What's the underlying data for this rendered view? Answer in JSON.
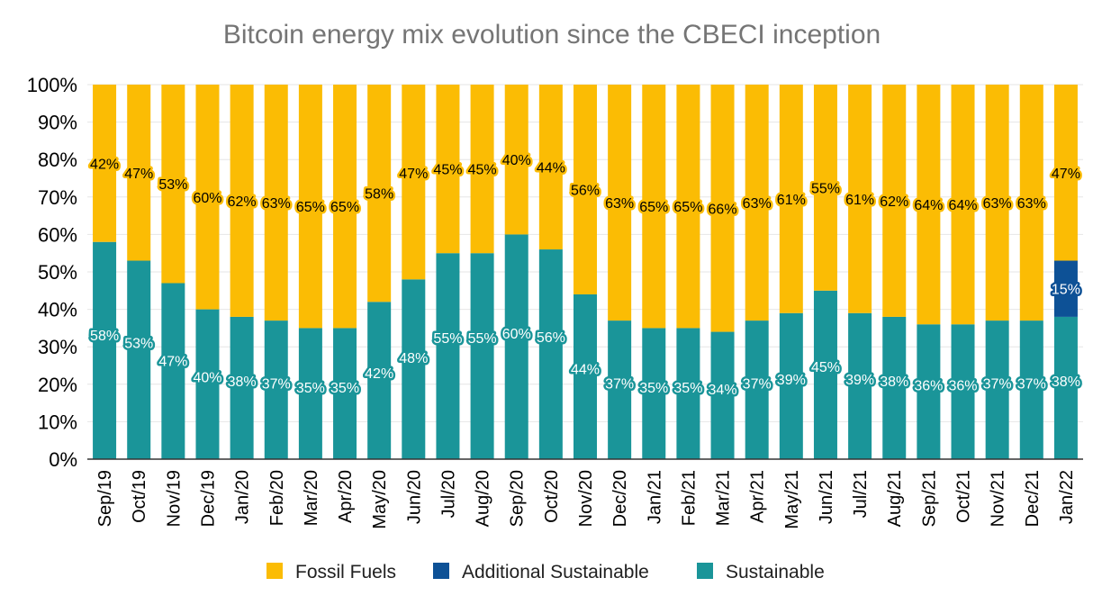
{
  "chart_data": {
    "type": "bar",
    "stacked": true,
    "title": "Bitcoin energy mix evolution since the CBECI inception",
    "categories": [
      "Sep/19",
      "Oct/19",
      "Nov/19",
      "Dec/19",
      "Jan/20",
      "Feb/20",
      "Mar/20",
      "Apr/20",
      "May/20",
      "Jun/20",
      "Jul/20",
      "Aug/20",
      "Sep/20",
      "Oct/20",
      "Nov/20",
      "Dec/20",
      "Jan/21",
      "Feb/21",
      "Mar/21",
      "Apr/21",
      "May/21",
      "Jun/21",
      "Jul/21",
      "Aug/21",
      "Sep/21",
      "Oct/21",
      "Nov/21",
      "Dec/21",
      "Jan/22"
    ],
    "series": [
      {
        "name": "Sustainable",
        "color": "#1a9599",
        "label_color": "#ffffff",
        "values": [
          58,
          53,
          47,
          40,
          38,
          37,
          35,
          35,
          42,
          48,
          55,
          55,
          60,
          56,
          44,
          37,
          35,
          35,
          34,
          37,
          39,
          45,
          39,
          38,
          36,
          36,
          37,
          37,
          38
        ]
      },
      {
        "name": "Additional Sustainable",
        "color": "#0d5196",
        "label_color": "#ffffff",
        "values": [
          null,
          null,
          null,
          null,
          null,
          null,
          null,
          null,
          null,
          null,
          null,
          null,
          null,
          null,
          null,
          null,
          null,
          null,
          null,
          null,
          null,
          null,
          null,
          null,
          null,
          null,
          null,
          null,
          15
        ]
      },
      {
        "name": "Fossil Fuels",
        "color": "#fbbc04",
        "label_color": "#000000",
        "values": [
          42,
          47,
          53,
          60,
          62,
          63,
          65,
          65,
          58,
          47,
          45,
          45,
          40,
          44,
          56,
          63,
          65,
          65,
          66,
          63,
          61,
          55,
          61,
          62,
          64,
          64,
          63,
          63,
          47
        ]
      }
    ],
    "y_tick_labels": [
      "0%",
      "10%",
      "20%",
      "30%",
      "40%",
      "50%",
      "60%",
      "70%",
      "80%",
      "90%",
      "100%"
    ],
    "ylim": [
      0,
      100
    ],
    "y_unit": "%",
    "grid": true,
    "legend_position": "bottom",
    "legend": [
      "Fossil Fuels",
      "Additional Sustainable",
      "Sustainable"
    ]
  }
}
